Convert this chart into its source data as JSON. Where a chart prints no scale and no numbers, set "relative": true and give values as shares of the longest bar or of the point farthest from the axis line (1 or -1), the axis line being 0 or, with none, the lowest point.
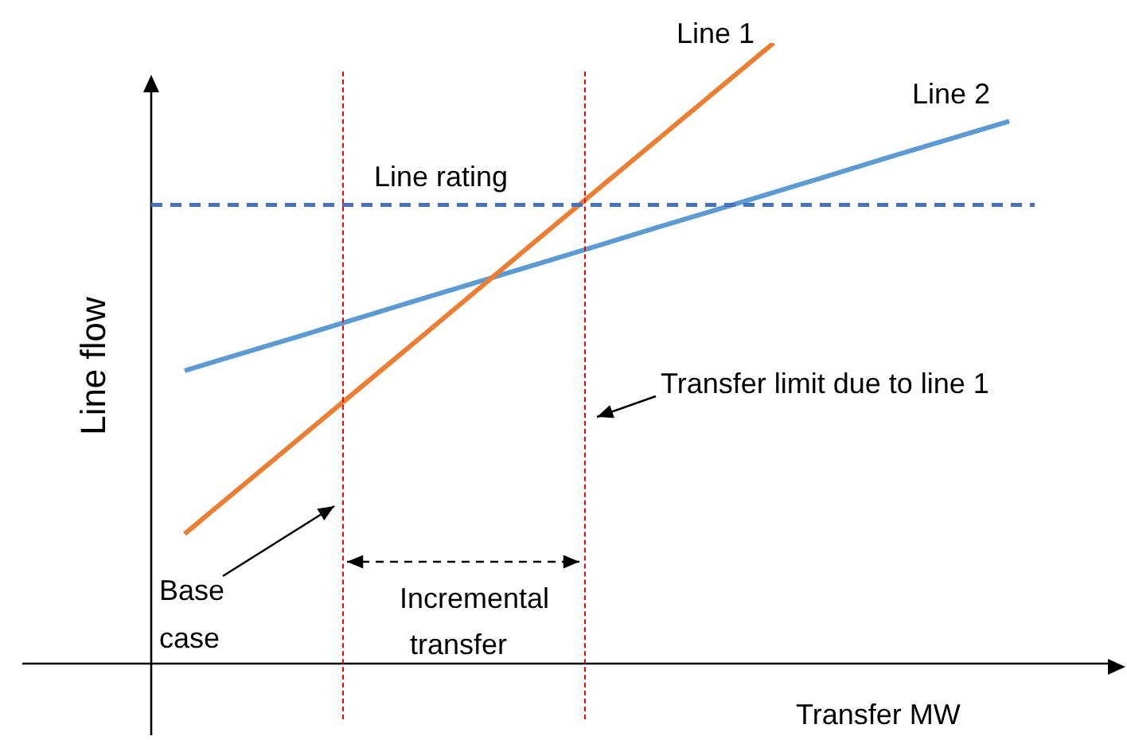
{
  "chart_data": {
    "type": "line",
    "relative": true,
    "xlabel": "Transfer MW",
    "ylabel": "Line flow",
    "legend": false,
    "categories": [
      null,
      null,
      null,
      null,
      null,
      null,
      null,
      null
    ],
    "series": [
      {
        "name": "Line 1",
        "color": "#ed7d31",
        "values": [
          0.209,
          0.367,
          0.525,
          0.684,
          0.842,
          1,
          null,
          null
        ]
      },
      {
        "name": "Line 2",
        "color": "#5b9bd5",
        "values": [
          0.472,
          0.529,
          0.587,
          0.644,
          0.702,
          0.759,
          0.817,
          0.874
        ]
      }
    ],
    "ref_lines": [
      {
        "axis": "y",
        "value": 0.739,
        "label": "Line rating",
        "color": "#4472c4",
        "line_style": "dashed"
      }
    ],
    "annotations": [
      "Base case",
      "Transfer limit due to line 1",
      "Incremental transfer"
    ]
  }
}
